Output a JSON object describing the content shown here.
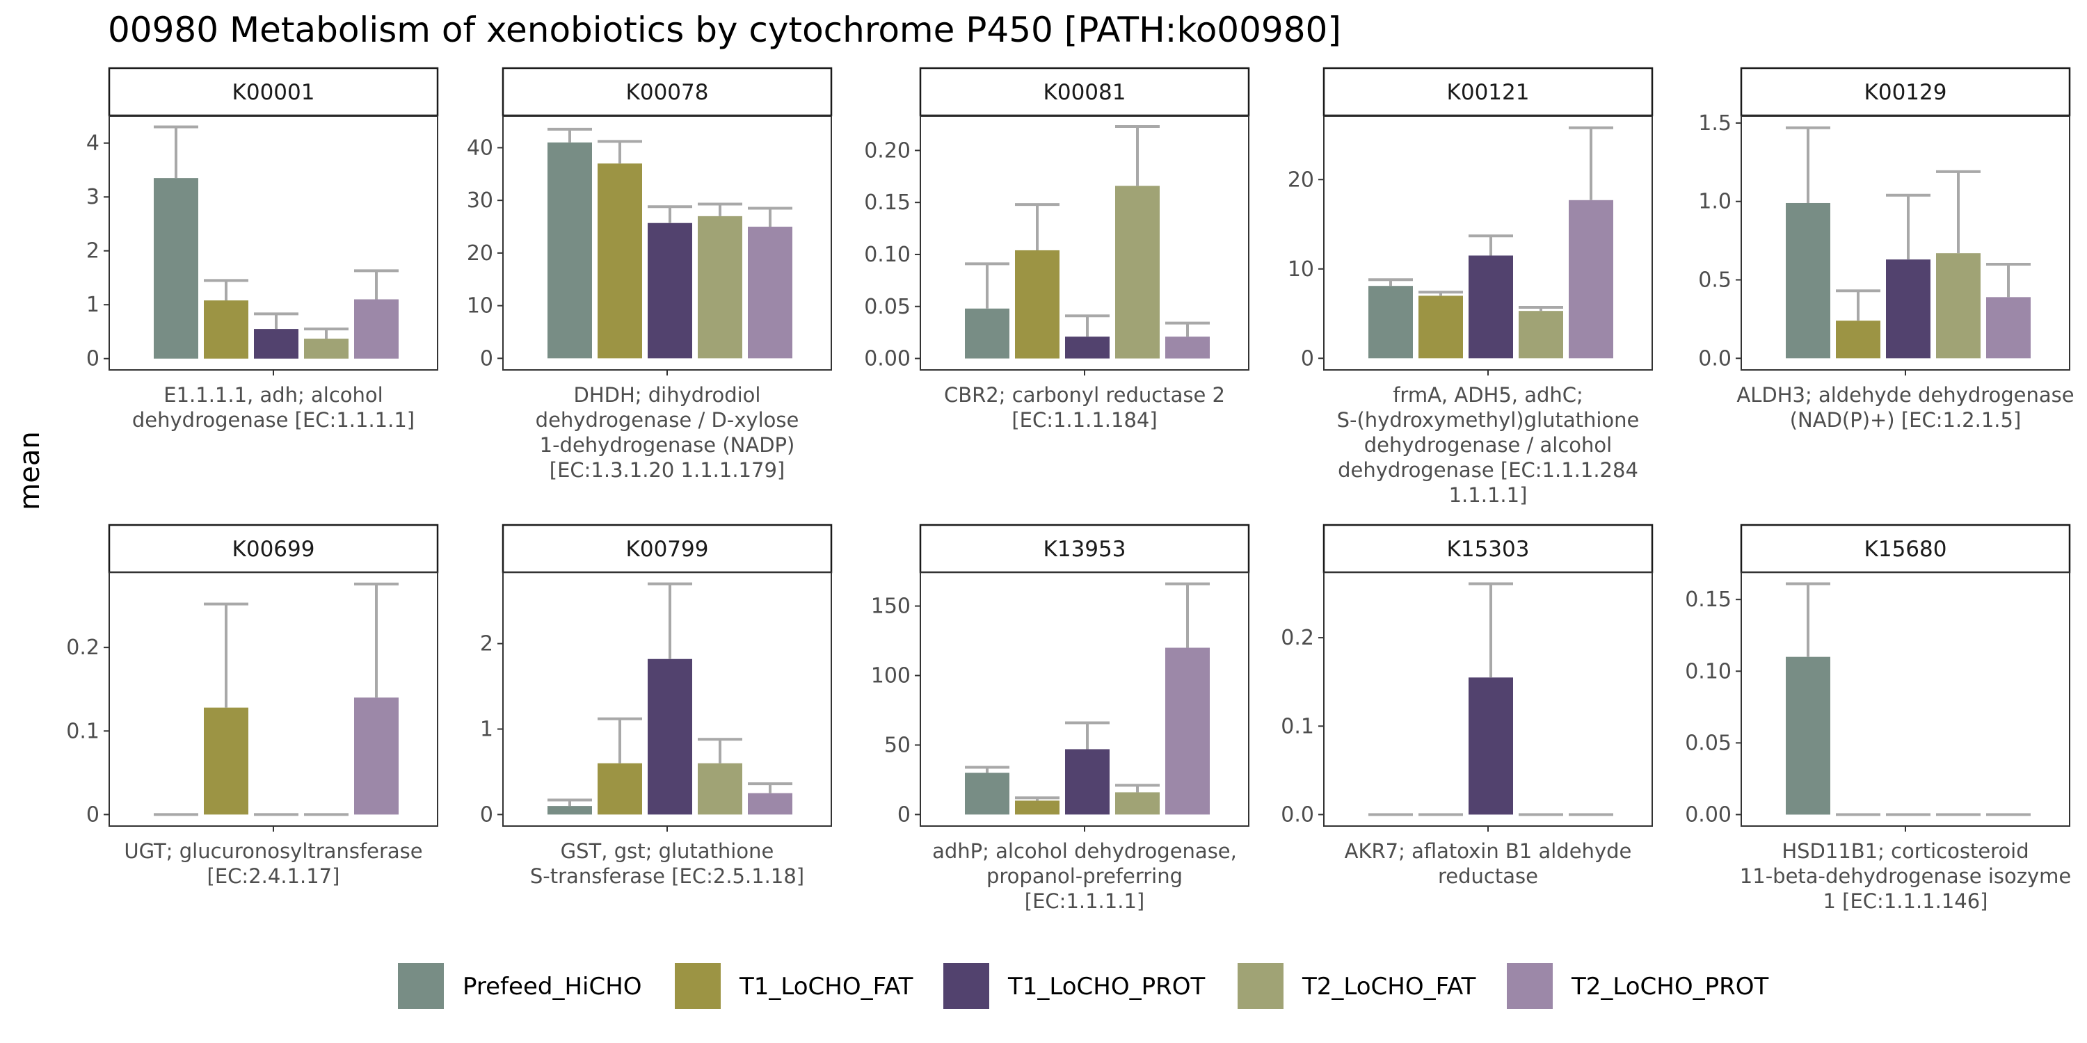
{
  "title": "00980 Metabolism of xenobiotics by cytochrome P450 [PATH:ko00980]",
  "ylabel": "mean",
  "legend": {
    "position": "bottom",
    "items": [
      {
        "name": "Prefeed_HiCHO",
        "color": "#788d85"
      },
      {
        "name": "T1_LoCHO_FAT",
        "color": "#9c9444"
      },
      {
        "name": "T1_LoCHO_PROT",
        "color": "#52426e"
      },
      {
        "name": "T2_LoCHO_FAT",
        "color": "#a0a375"
      },
      {
        "name": "T2_LoCHO_PROT",
        "color": "#9c88a8"
      }
    ]
  },
  "chart_data": [
    {
      "type": "bar",
      "panel": "K00001",
      "category_label": [
        "E1.1.1.1, adh; alcohol",
        "dehydrogenase [EC:1.1.1.1]"
      ],
      "series_values": [
        3.35,
        1.08,
        0.55,
        0.37,
        1.1
      ],
      "error_upper": [
        4.3,
        1.45,
        0.83,
        0.55,
        1.63
      ],
      "yticks": [
        0,
        1,
        2,
        3,
        4
      ],
      "ylim": [
        -0.21,
        4.5
      ]
    },
    {
      "type": "bar",
      "panel": "K00078",
      "category_label": [
        "DHDH; dihydrodiol",
        "dehydrogenase / D-xylose",
        "1-dehydrogenase (NADP)",
        "[EC:1.3.1.20 1.1.1.179]"
      ],
      "series_values": [
        41,
        37,
        25.7,
        27,
        25
      ],
      "error_upper": [
        43.5,
        41.2,
        28.8,
        29.3,
        28.5
      ],
      "yticks": [
        0,
        10,
        20,
        30,
        40
      ],
      "ylim": [
        -2.2,
        46
      ]
    },
    {
      "type": "bar",
      "panel": "K00081",
      "category_label": [
        "CBR2; carbonyl reductase 2",
        "[EC:1.1.1.184]"
      ],
      "series_values": [
        0.048,
        0.104,
        0.021,
        0.166,
        0.021
      ],
      "error_upper": [
        0.091,
        0.148,
        0.041,
        0.223,
        0.034
      ],
      "yticks": [
        0,
        0.05,
        0.1,
        0.15,
        0.2
      ],
      "tick_text": [
        "0.00",
        "0.05",
        "0.10",
        "0.15",
        "0.20"
      ],
      "ylim": [
        -0.011,
        0.233
      ]
    },
    {
      "type": "bar",
      "panel": "K00121",
      "category_label": [
        "frmA, ADH5, adhC;",
        "S-(hydroxymethyl)glutathione",
        "dehydrogenase / alcohol",
        "dehydrogenase [EC:1.1.1.284",
        "1.1.1.1]"
      ],
      "series_values": [
        8.1,
        7.0,
        11.5,
        5.3,
        17.7
      ],
      "error_upper": [
        8.8,
        7.4,
        13.7,
        5.7,
        25.8
      ],
      "yticks": [
        0,
        10,
        20
      ],
      "ylim": [
        -1.3,
        27.1
      ]
    },
    {
      "type": "bar",
      "panel": "K00129",
      "category_label": [
        "ALDH3; aldehyde dehydrogenase",
        "(NAD(P)+) [EC:1.2.1.5]"
      ],
      "series_values": [
        0.99,
        0.24,
        0.63,
        0.67,
        0.39
      ],
      "error_upper": [
        1.47,
        0.43,
        1.04,
        1.19,
        0.6
      ],
      "yticks": [
        0,
        0.5,
        1,
        1.5
      ],
      "tick_text": [
        "0.0",
        "0.5",
        "1.0",
        "1.5"
      ],
      "ylim": [
        -0.074,
        1.544
      ]
    },
    {
      "type": "bar",
      "panel": "K00699",
      "category_label": [
        "UGT; glucuronosyltransferase",
        "[EC:2.4.1.17]"
      ],
      "series_values": [
        0,
        0.128,
        0,
        0,
        0.14
      ],
      "error_upper": [
        0,
        0.252,
        0,
        0,
        0.276
      ],
      "yticks": [
        0,
        0.1,
        0.2
      ],
      "ylim": [
        -0.0138,
        0.29
      ]
    },
    {
      "type": "bar",
      "panel": "K00799",
      "category_label": [
        "GST, gst; glutathione",
        "S-transferase [EC:2.5.1.18]"
      ],
      "series_values": [
        0.1,
        0.6,
        1.82,
        0.6,
        0.25
      ],
      "error_upper": [
        0.17,
        1.12,
        2.7,
        0.88,
        0.36
      ],
      "yticks": [
        0,
        1,
        2
      ],
      "ylim": [
        -0.135,
        2.835
      ]
    },
    {
      "type": "bar",
      "panel": "K13953",
      "category_label": [
        "adhP; alcohol dehydrogenase,",
        "propanol-preferring",
        "[EC:1.1.1.1]"
      ],
      "series_values": [
        30,
        10,
        47,
        16,
        120
      ],
      "error_upper": [
        34,
        12,
        66,
        21,
        166
      ],
      "yticks": [
        0,
        50,
        100,
        150
      ],
      "ylim": [
        -8.3,
        174.3
      ]
    },
    {
      "type": "bar",
      "panel": "K15303",
      "category_label": [
        "AKR7; aflatoxin B1 aldehyde",
        "reductase"
      ],
      "series_values": [
        0,
        0,
        0.155,
        0,
        0
      ],
      "error_upper": [
        0,
        0,
        0.261,
        0,
        0
      ],
      "yticks": [
        0,
        0.1,
        0.2
      ],
      "tick_text": [
        "0.0",
        "0.1",
        "0.2"
      ],
      "ylim": [
        -0.013,
        0.274
      ]
    },
    {
      "type": "bar",
      "panel": "K15680",
      "category_label": [
        "HSD11B1; corticosteroid",
        "11-beta-dehydrogenase isozyme",
        "1 [EC:1.1.1.146]"
      ],
      "series_values": [
        0.11,
        0,
        0,
        0,
        0
      ],
      "error_upper": [
        0.161,
        0,
        0,
        0,
        0
      ],
      "yticks": [
        0,
        0.05,
        0.1,
        0.15
      ],
      "tick_text": [
        "0.00",
        "0.05",
        "0.10",
        "0.15"
      ],
      "ylim": [
        -0.008,
        0.169
      ]
    }
  ]
}
